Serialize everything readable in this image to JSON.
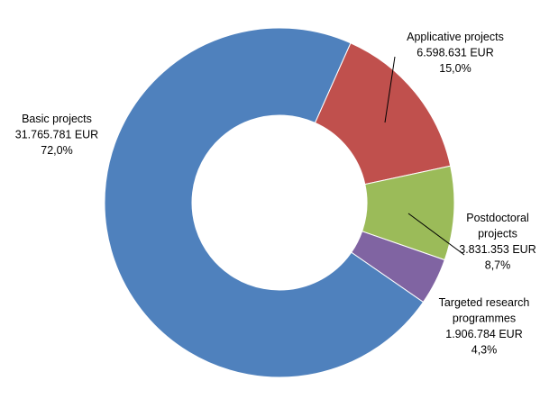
{
  "chart_data": {
    "type": "pie",
    "variant": "donut",
    "title": "",
    "start_angle_deg": 24,
    "direction": "clockwise",
    "slices": [
      {
        "label": [
          "Applicative projects"
        ],
        "amount": "6.598.631 EUR",
        "percent_text": "15,0%",
        "value": 6598631,
        "percent": 15.0,
        "color": "#C0504D"
      },
      {
        "label": [
          "Postdoctoral",
          "projects"
        ],
        "amount": "3.831.353 EUR",
        "percent_text": "8,7%",
        "value": 3831353,
        "percent": 8.7,
        "color": "#9BBB59"
      },
      {
        "label": [
          "Targeted research",
          "programmes"
        ],
        "amount": "1.906.784 EUR",
        "percent_text": "4,3%",
        "value": 1906784,
        "percent": 4.3,
        "color": "#8064A2"
      },
      {
        "label": [
          "Basic projects"
        ],
        "amount": "31.765.781 EUR",
        "percent_text": "72,0%",
        "value": 31765781,
        "percent": 72.0,
        "color": "#4F81BD"
      }
    ]
  }
}
